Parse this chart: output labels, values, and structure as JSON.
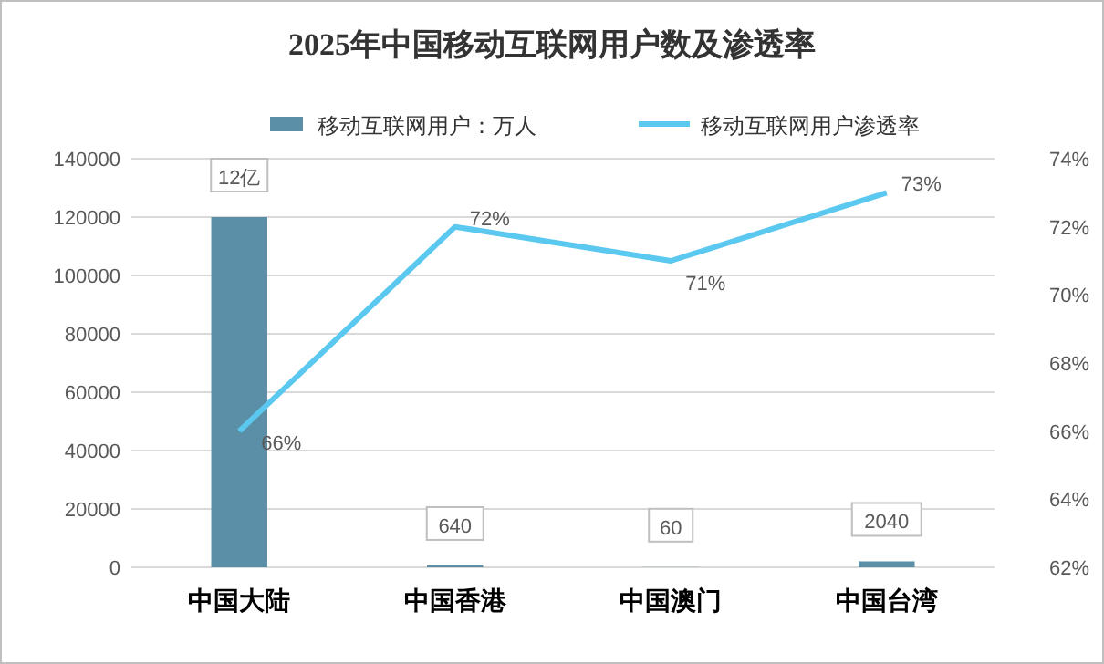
{
  "chart_data": {
    "type": "bar",
    "title": "2025年中国移动互联网用户数及渗透率",
    "categories": [
      "中国大陆",
      "中国香港",
      "中国澳门",
      "中国台湾"
    ],
    "series": [
      {
        "name": "移动互联网用户：万人",
        "color": "#5b8fa8",
        "values": [
          120000,
          640,
          60,
          2040
        ],
        "value_labels": [
          null,
          "640",
          "60",
          "2040"
        ]
      },
      {
        "name": "移动互联网用户渗透率",
        "type": "line",
        "axis": "y2",
        "color": "#5bc8f0",
        "values": [
          66,
          72,
          71,
          73
        ],
        "value_labels": [
          "66%",
          "72%",
          "71%",
          "73%"
        ]
      }
    ],
    "ylim": [
      0,
      140000
    ],
    "yticks": [
      0,
      20000,
      40000,
      60000,
      80000,
      100000,
      120000,
      140000
    ],
    "y2lim": [
      62,
      74
    ],
    "y2ticks": [
      {
        "value": 62,
        "label": "62%"
      },
      {
        "value": 64,
        "label": "64%"
      },
      {
        "value": 66,
        "label": "66%"
      },
      {
        "value": 68,
        "label": "68%"
      },
      {
        "value": 70,
        "label": "70%"
      },
      {
        "value": 72,
        "label": "72%"
      },
      {
        "value": 74,
        "label": "74%"
      }
    ],
    "annotations": [
      {
        "text": "12亿",
        "x": "中国大陆",
        "y": 120000
      }
    ],
    "grid": "y",
    "legend": "top"
  }
}
